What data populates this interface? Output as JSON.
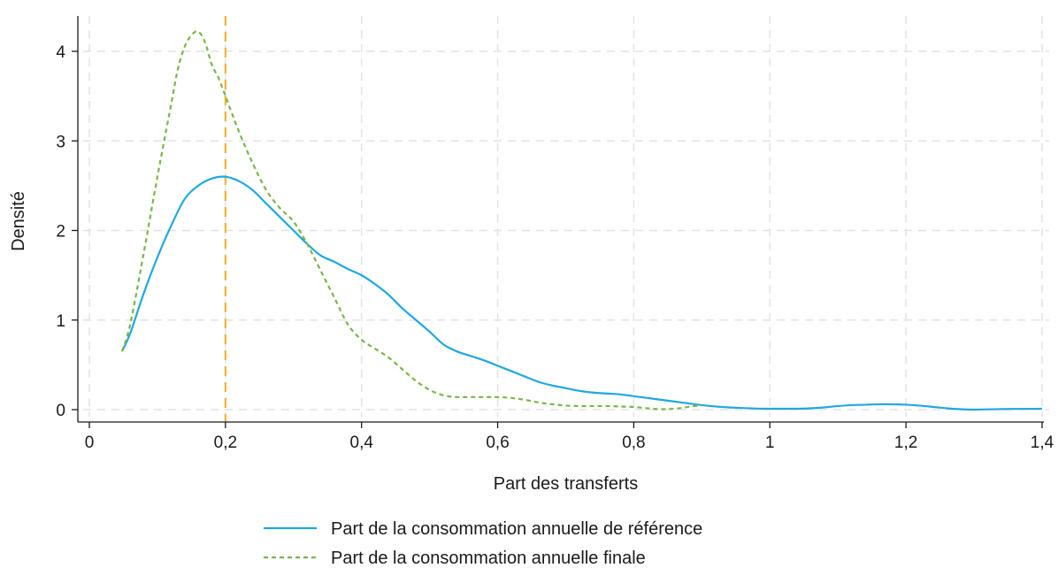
{
  "chart_data": {
    "type": "line",
    "title": "",
    "xlabel": "Part des transferts",
    "ylabel": "Densité",
    "xlim": [
      0,
      1.4
    ],
    "ylim": [
      0,
      4.35
    ],
    "x_ticks": [
      0,
      0.2,
      0.4,
      0.6,
      0.8,
      1,
      1.2,
      1.4
    ],
    "x_tick_labels": [
      "0",
      "0,2",
      "0,4",
      "0,6",
      "0,8",
      "1",
      "1,2",
      "1,4"
    ],
    "y_ticks": [
      0,
      1,
      2,
      3,
      4
    ],
    "y_tick_labels": [
      "0",
      "1",
      "2",
      "3",
      "4"
    ],
    "grid": true,
    "legend_position": "bottom",
    "reference_line": {
      "axis": "x",
      "value": 0.2,
      "color": "#f2b431",
      "style": "dashed"
    },
    "series": [
      {
        "name": "Part de la consommation annuelle de référence",
        "color": "#1fa8e0",
        "style": "solid",
        "points": [
          [
            0.048,
            0.65
          ],
          [
            0.06,
            0.85
          ],
          [
            0.08,
            1.3
          ],
          [
            0.1,
            1.7
          ],
          [
            0.12,
            2.05
          ],
          [
            0.14,
            2.35
          ],
          [
            0.16,
            2.5
          ],
          [
            0.18,
            2.58
          ],
          [
            0.2,
            2.6
          ],
          [
            0.22,
            2.55
          ],
          [
            0.24,
            2.45
          ],
          [
            0.26,
            2.3
          ],
          [
            0.28,
            2.15
          ],
          [
            0.3,
            2.0
          ],
          [
            0.32,
            1.85
          ],
          [
            0.34,
            1.72
          ],
          [
            0.36,
            1.65
          ],
          [
            0.38,
            1.57
          ],
          [
            0.4,
            1.5
          ],
          [
            0.42,
            1.4
          ],
          [
            0.44,
            1.28
          ],
          [
            0.46,
            1.13
          ],
          [
            0.48,
            1.0
          ],
          [
            0.5,
            0.87
          ],
          [
            0.52,
            0.73
          ],
          [
            0.54,
            0.65
          ],
          [
            0.56,
            0.6
          ],
          [
            0.58,
            0.55
          ],
          [
            0.6,
            0.49
          ],
          [
            0.62,
            0.43
          ],
          [
            0.64,
            0.37
          ],
          [
            0.66,
            0.31
          ],
          [
            0.68,
            0.27
          ],
          [
            0.7,
            0.24
          ],
          [
            0.72,
            0.21
          ],
          [
            0.74,
            0.19
          ],
          [
            0.76,
            0.18
          ],
          [
            0.78,
            0.17
          ],
          [
            0.8,
            0.15
          ],
          [
            0.82,
            0.13
          ],
          [
            0.84,
            0.11
          ],
          [
            0.86,
            0.09
          ],
          [
            0.88,
            0.07
          ],
          [
            0.9,
            0.05
          ],
          [
            0.92,
            0.035
          ],
          [
            0.94,
            0.025
          ],
          [
            0.96,
            0.018
          ],
          [
            0.98,
            0.012
          ],
          [
            1.0,
            0.01
          ],
          [
            1.02,
            0.01
          ],
          [
            1.04,
            0.01
          ],
          [
            1.06,
            0.015
          ],
          [
            1.08,
            0.025
          ],
          [
            1.1,
            0.04
          ],
          [
            1.12,
            0.05
          ],
          [
            1.14,
            0.055
          ],
          [
            1.16,
            0.06
          ],
          [
            1.18,
            0.06
          ],
          [
            1.2,
            0.055
          ],
          [
            1.22,
            0.045
          ],
          [
            1.24,
            0.03
          ],
          [
            1.26,
            0.015
          ],
          [
            1.28,
            0.005
          ],
          [
            1.3,
            0.0
          ],
          [
            1.32,
            0.003
          ],
          [
            1.34,
            0.006
          ],
          [
            1.36,
            0.008
          ],
          [
            1.38,
            0.009
          ],
          [
            1.4,
            0.01
          ]
        ]
      },
      {
        "name": "Part de la consommation annuelle finale",
        "color": "#7ab648",
        "style": "dashed",
        "points": [
          [
            0.048,
            0.65
          ],
          [
            0.06,
            0.95
          ],
          [
            0.08,
            1.75
          ],
          [
            0.1,
            2.6
          ],
          [
            0.12,
            3.4
          ],
          [
            0.13,
            3.8
          ],
          [
            0.14,
            4.05
          ],
          [
            0.15,
            4.18
          ],
          [
            0.16,
            4.22
          ],
          [
            0.17,
            4.1
          ],
          [
            0.18,
            3.85
          ],
          [
            0.19,
            3.7
          ],
          [
            0.2,
            3.5
          ],
          [
            0.22,
            3.1
          ],
          [
            0.24,
            2.75
          ],
          [
            0.26,
            2.45
          ],
          [
            0.28,
            2.25
          ],
          [
            0.3,
            2.1
          ],
          [
            0.32,
            1.85
          ],
          [
            0.34,
            1.55
          ],
          [
            0.36,
            1.25
          ],
          [
            0.38,
            0.95
          ],
          [
            0.4,
            0.78
          ],
          [
            0.42,
            0.68
          ],
          [
            0.44,
            0.58
          ],
          [
            0.46,
            0.45
          ],
          [
            0.48,
            0.32
          ],
          [
            0.5,
            0.22
          ],
          [
            0.52,
            0.16
          ],
          [
            0.54,
            0.14
          ],
          [
            0.56,
            0.14
          ],
          [
            0.58,
            0.14
          ],
          [
            0.6,
            0.14
          ],
          [
            0.62,
            0.13
          ],
          [
            0.64,
            0.11
          ],
          [
            0.66,
            0.08
          ],
          [
            0.68,
            0.06
          ],
          [
            0.7,
            0.045
          ],
          [
            0.72,
            0.04
          ],
          [
            0.74,
            0.04
          ],
          [
            0.76,
            0.04
          ],
          [
            0.78,
            0.035
          ],
          [
            0.8,
            0.03
          ],
          [
            0.82,
            0.015
          ],
          [
            0.84,
            0.005
          ],
          [
            0.86,
            0.01
          ],
          [
            0.88,
            0.03
          ],
          [
            0.9,
            0.05
          ]
        ]
      }
    ]
  }
}
